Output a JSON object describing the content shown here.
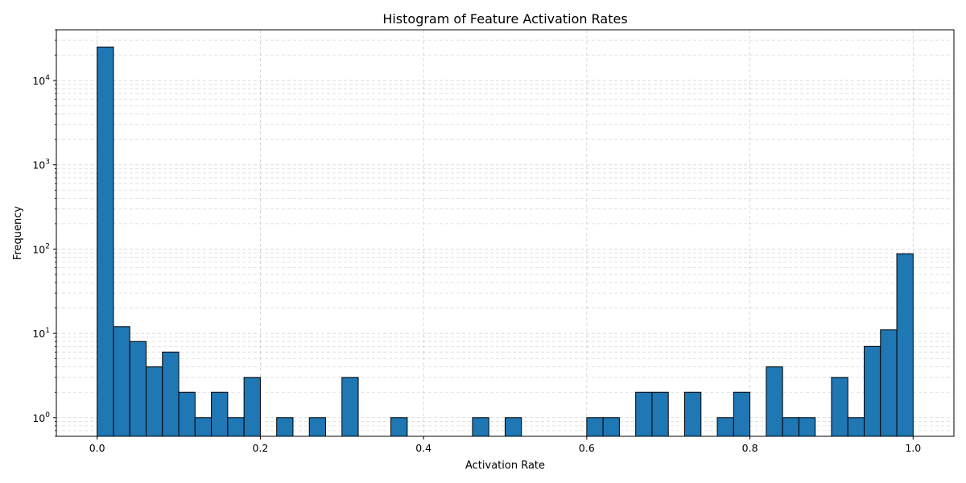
{
  "chart_data": {
    "type": "bar",
    "title": "Histogram of Feature Activation Rates",
    "xlabel": "Activation Rate",
    "ylabel": "Frequency",
    "x_scale": "linear",
    "y_scale": "log",
    "xlim": [
      -0.05,
      1.05
    ],
    "ylim": [
      0.6,
      40000
    ],
    "grid": true,
    "grid_style": "dashed",
    "bar_color": "#1f77b4",
    "edge_color": "#000000",
    "x_ticks": [
      {
        "value": 0.0,
        "label": "0.0"
      },
      {
        "value": 0.2,
        "label": "0.2"
      },
      {
        "value": 0.4,
        "label": "0.4"
      },
      {
        "value": 0.6,
        "label": "0.6"
      },
      {
        "value": 0.8,
        "label": "0.8"
      },
      {
        "value": 1.0,
        "label": "1.0"
      }
    ],
    "y_ticks": [
      {
        "value": 1,
        "base": "10",
        "exp": "0"
      },
      {
        "value": 10,
        "base": "10",
        "exp": "1"
      },
      {
        "value": 100,
        "base": "10",
        "exp": "2"
      },
      {
        "value": 1000,
        "base": "10",
        "exp": "3"
      },
      {
        "value": 10000,
        "base": "10",
        "exp": "4"
      }
    ],
    "bins": [
      {
        "x0": 0.0,
        "x1": 0.02,
        "count": 25000
      },
      {
        "x0": 0.02,
        "x1": 0.04,
        "count": 12
      },
      {
        "x0": 0.04,
        "x1": 0.06,
        "count": 8
      },
      {
        "x0": 0.06,
        "x1": 0.08,
        "count": 4
      },
      {
        "x0": 0.08,
        "x1": 0.1,
        "count": 6
      },
      {
        "x0": 0.1,
        "x1": 0.12,
        "count": 2
      },
      {
        "x0": 0.12,
        "x1": 0.14,
        "count": 1
      },
      {
        "x0": 0.14,
        "x1": 0.16,
        "count": 2
      },
      {
        "x0": 0.16,
        "x1": 0.18,
        "count": 1
      },
      {
        "x0": 0.18,
        "x1": 0.2,
        "count": 3
      },
      {
        "x0": 0.22,
        "x1": 0.24,
        "count": 1
      },
      {
        "x0": 0.26,
        "x1": 0.28,
        "count": 1
      },
      {
        "x0": 0.3,
        "x1": 0.32,
        "count": 3
      },
      {
        "x0": 0.36,
        "x1": 0.38,
        "count": 1
      },
      {
        "x0": 0.46,
        "x1": 0.48,
        "count": 1
      },
      {
        "x0": 0.5,
        "x1": 0.52,
        "count": 1
      },
      {
        "x0": 0.6,
        "x1": 0.62,
        "count": 1
      },
      {
        "x0": 0.62,
        "x1": 0.64,
        "count": 1
      },
      {
        "x0": 0.66,
        "x1": 0.68,
        "count": 2
      },
      {
        "x0": 0.68,
        "x1": 0.7,
        "count": 2
      },
      {
        "x0": 0.72,
        "x1": 0.74,
        "count": 2
      },
      {
        "x0": 0.76,
        "x1": 0.78,
        "count": 1
      },
      {
        "x0": 0.78,
        "x1": 0.8,
        "count": 2
      },
      {
        "x0": 0.82,
        "x1": 0.84,
        "count": 4
      },
      {
        "x0": 0.84,
        "x1": 0.86,
        "count": 1
      },
      {
        "x0": 0.86,
        "x1": 0.88,
        "count": 1
      },
      {
        "x0": 0.9,
        "x1": 0.92,
        "count": 3
      },
      {
        "x0": 0.92,
        "x1": 0.94,
        "count": 1
      },
      {
        "x0": 0.94,
        "x1": 0.96,
        "count": 7
      },
      {
        "x0": 0.96,
        "x1": 0.98,
        "count": 11
      },
      {
        "x0": 0.98,
        "x1": 1.0,
        "count": 88
      }
    ]
  }
}
